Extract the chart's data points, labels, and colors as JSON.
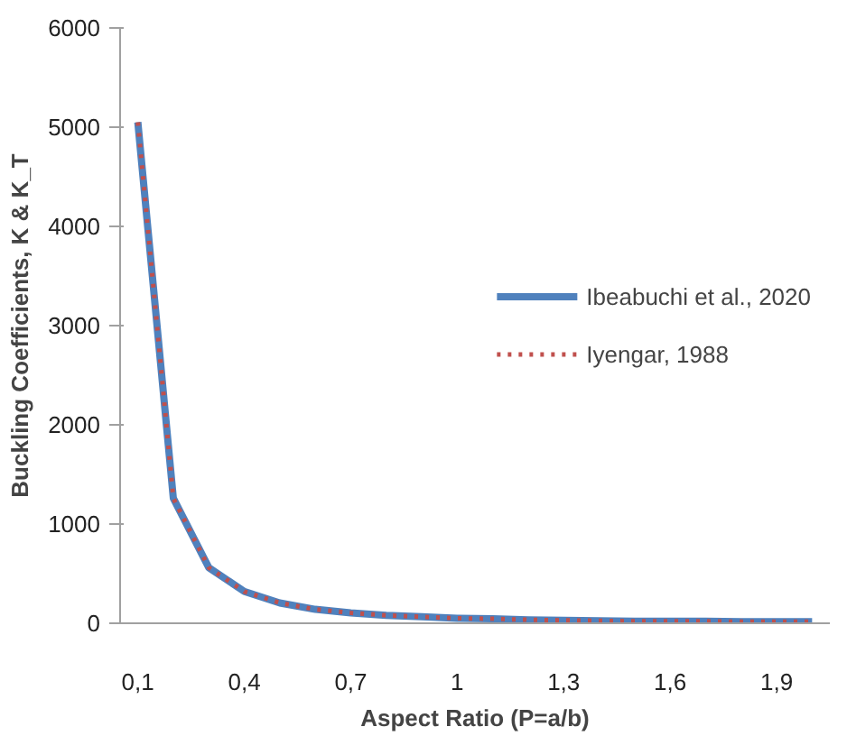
{
  "chart_data": {
    "type": "line",
    "xlabel": "Aspect Ratio (P=a/b)",
    "ylabel": "Buckling Coefficients, K & K_T",
    "categories": [
      "0,1",
      null,
      null,
      "0,4",
      null,
      null,
      "0,7",
      null,
      null,
      "1",
      null,
      null,
      "1,3",
      null,
      null,
      "1,6",
      null,
      null,
      "1,9",
      null
    ],
    "series": [
      {
        "name": "Ibeabuchi et al., 2020",
        "color": "#4f81bd",
        "line_style": "solid",
        "values": [
          5050,
          1260,
          560,
          320,
          205,
          140,
          105,
          80,
          65,
          50,
          45,
          35,
          30,
          25,
          20,
          20,
          20,
          15,
          15,
          15
        ]
      },
      {
        "name": "Iyengar, 1988",
        "color": "#c0504d",
        "line_style": "dotted",
        "values": [
          5050,
          1260,
          560,
          320,
          205,
          140,
          105,
          80,
          65,
          50,
          45,
          35,
          30,
          25,
          20,
          20,
          20,
          15,
          15,
          15
        ]
      }
    ],
    "ylim": [
      0,
      6000
    ],
    "yticks": [
      0,
      1000,
      2000,
      3000,
      4000,
      5000,
      6000
    ],
    "grid": false,
    "legend": "right",
    "marker": "none"
  }
}
